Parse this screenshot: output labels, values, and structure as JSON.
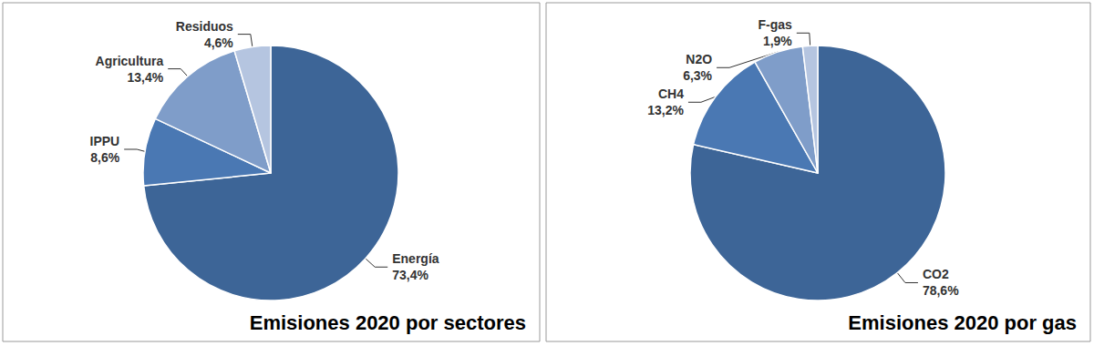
{
  "chart_data": [
    {
      "type": "pie",
      "title": "Emisiones 2020 por sectores",
      "categories": [
        "Energía",
        "IPPU",
        "Agricultura",
        "Residuos"
      ],
      "values": [
        73.4,
        8.6,
        13.4,
        4.6
      ],
      "value_labels": [
        "73,4%",
        "8,6%",
        "13,4%",
        "4,6%"
      ],
      "colors": [
        "#3d6597",
        "#4a78b3",
        "#7f9dc9",
        "#b5c5e0"
      ],
      "data_labels": true
    },
    {
      "type": "pie",
      "title": "Emisiones 2020 por gas",
      "categories": [
        "CO2",
        "CH4",
        "N2O",
        "F-gas"
      ],
      "values": [
        78.6,
        13.2,
        6.3,
        1.9
      ],
      "value_labels": [
        "78,6%",
        "13,2%",
        "6,3%",
        "1,9%"
      ],
      "colors": [
        "#3d6597",
        "#4a78b3",
        "#7f9dc9",
        "#b5c5e0"
      ],
      "data_labels": true
    }
  ]
}
